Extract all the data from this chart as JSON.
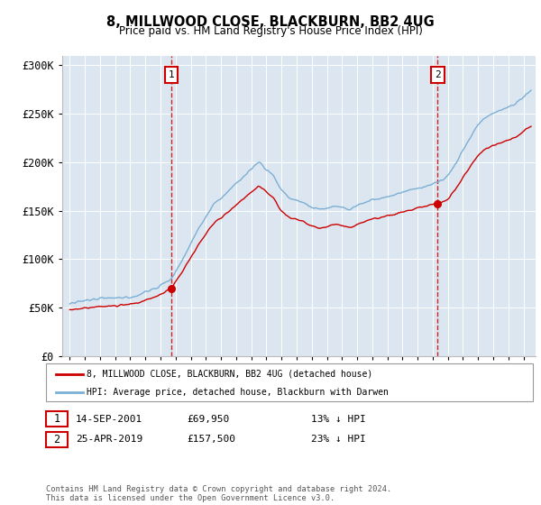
{
  "title": "8, MILLWOOD CLOSE, BLACKBURN, BB2 4UG",
  "subtitle": "Price paid vs. HM Land Registry's House Price Index (HPI)",
  "sale1_date": "14-SEP-2001",
  "sale1_price": 69950,
  "sale1_label": "1",
  "sale1_year": 2001.71,
  "sale2_date": "25-APR-2019",
  "sale2_price": 157500,
  "sale2_label": "2",
  "sale2_year": 2019.32,
  "legend_property": "8, MILLWOOD CLOSE, BLACKBURN, BB2 4UG (detached house)",
  "legend_hpi": "HPI: Average price, detached house, Blackburn with Darwen",
  "footer": "Contains HM Land Registry data © Crown copyright and database right 2024.\nThis data is licensed under the Open Government Licence v3.0.",
  "hpi_color": "#7bafd4",
  "price_color": "#cc0000",
  "bg_color": "#dce6f1",
  "grid_color": "#ffffff",
  "marker_box_color": "#cc0000",
  "dashed_line_color": "#cc0000",
  "ylim": [
    0,
    310000
  ],
  "xlim_start": 1994.5,
  "xlim_end": 2025.8
}
